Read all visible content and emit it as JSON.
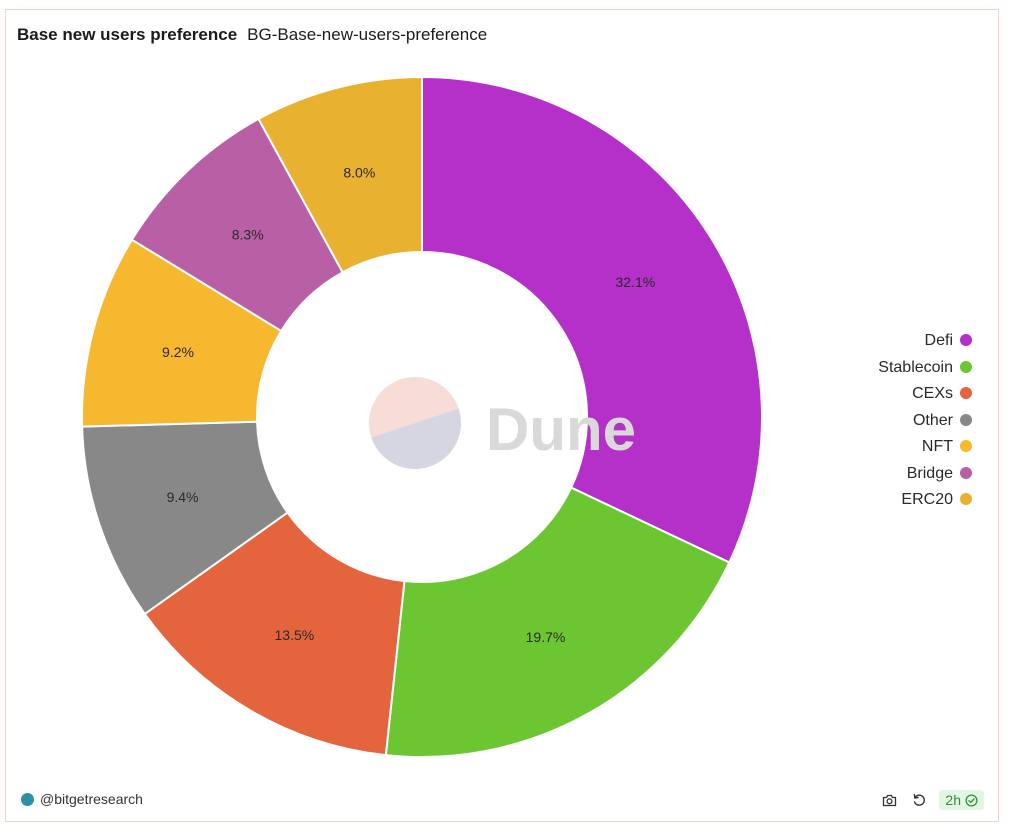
{
  "header": {
    "title": "Base new users preference",
    "subtitle": "BG-Base-new-users-preference"
  },
  "watermark": {
    "text": "Dune"
  },
  "chart_data": {
    "type": "pie",
    "donut": true,
    "title": "Base new users preference",
    "legend_position": "right",
    "categories": [
      "Defi",
      "Stablecoin",
      "CEXs",
      "Other",
      "NFT",
      "Bridge",
      "ERC20"
    ],
    "values": [
      32.1,
      19.7,
      13.5,
      9.4,
      9.2,
      8.3,
      8.0
    ],
    "labels": [
      "32.1%",
      "19.7%",
      "13.5%",
      "9.4%",
      "9.2%",
      "8.3%",
      "8.0%"
    ],
    "colors": [
      "#b430c8",
      "#6cc631",
      "#e4643d",
      "#888888",
      "#f5b82e",
      "#b85fa5",
      "#e8b12f"
    ]
  },
  "footer": {
    "author": "@bitgetresearch",
    "age": "2h",
    "camera_icon": "camera-icon",
    "refresh_icon": "refresh-icon",
    "check_icon": "check-circle-icon"
  }
}
